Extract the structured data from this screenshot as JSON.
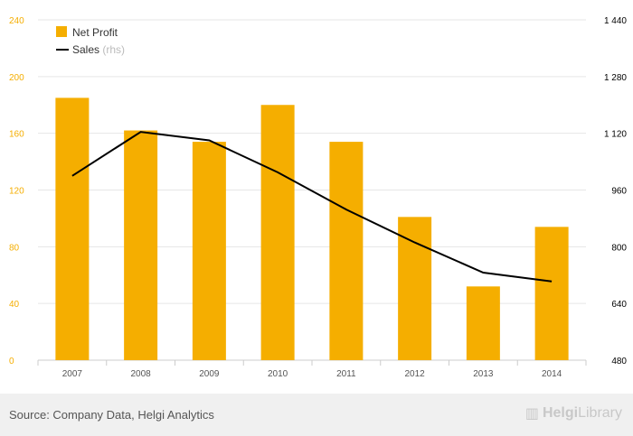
{
  "chart_data": {
    "type": "bar",
    "categories": [
      "2007",
      "2008",
      "2009",
      "2010",
      "2011",
      "2012",
      "2013",
      "2014"
    ],
    "series": [
      {
        "name": "Net Profit",
        "kind": "bar",
        "axis": "left",
        "color": "#f5ae00",
        "values": [
          185,
          162,
          154,
          180,
          154,
          101,
          52,
          94
        ]
      },
      {
        "name": "Sales",
        "name_suffix": "(rhs)",
        "kind": "line",
        "axis": "right",
        "color": "#000000",
        "values": [
          1000,
          1124,
          1100,
          1010,
          905,
          812,
          727,
          702
        ]
      }
    ],
    "y_left": {
      "min": 0,
      "max": 240,
      "ticks": [
        "0",
        "40",
        "80",
        "120",
        "160",
        "200",
        "240"
      ],
      "color": "#f5ae00"
    },
    "y_right": {
      "min": 480,
      "max": 1440,
      "ticks": [
        "480",
        "640",
        "800",
        "960",
        "1 120",
        "1 280",
        "1 440"
      ],
      "color": "#000000"
    },
    "grid": true,
    "legend": "top-left"
  },
  "footer": {
    "source": "Source: Company Data, Helgi Analytics",
    "logo_text": "HelgiLibrary",
    "logo_part1": "Helgi",
    "logo_part2": "Library"
  }
}
